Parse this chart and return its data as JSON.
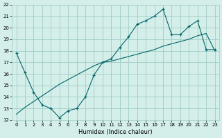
{
  "title": "",
  "xlabel": "Humidex (Indice chaleur)",
  "xlim": [
    -0.5,
    23.5
  ],
  "ylim": [
    12,
    22
  ],
  "xticks": [
    0,
    1,
    2,
    3,
    4,
    5,
    6,
    7,
    8,
    9,
    10,
    11,
    12,
    13,
    14,
    15,
    16,
    17,
    18,
    19,
    20,
    21,
    22,
    23
  ],
  "yticks": [
    12,
    13,
    14,
    15,
    16,
    17,
    18,
    19,
    20,
    21,
    22
  ],
  "background_color": "#d4eeea",
  "grid_color": "#a0ccc6",
  "line_color": "#006666",
  "series1_x": [
    0,
    1,
    2,
    3,
    4,
    5,
    6,
    7,
    8,
    9,
    10,
    11,
    12,
    13,
    14,
    15,
    16,
    17,
    18,
    19,
    20,
    21,
    22,
    23
  ],
  "series1_y": [
    17.8,
    16.1,
    14.4,
    13.3,
    13.0,
    12.2,
    12.8,
    13.0,
    14.0,
    15.9,
    17.0,
    17.3,
    18.3,
    19.2,
    20.3,
    20.6,
    21.0,
    21.6,
    19.4,
    19.4,
    20.1,
    20.6,
    18.1,
    18.1
  ],
  "series2_x": [
    0,
    1,
    2,
    3,
    4,
    5,
    6,
    7,
    8,
    9,
    10,
    11,
    12,
    13,
    14,
    15,
    16,
    17,
    18,
    19,
    20,
    21,
    22,
    23
  ],
  "series2_y": [
    12.5,
    13.1,
    13.6,
    14.1,
    14.6,
    15.1,
    15.5,
    15.9,
    16.3,
    16.7,
    17.0,
    17.1,
    17.3,
    17.5,
    17.7,
    17.9,
    18.1,
    18.4,
    18.6,
    18.8,
    19.0,
    19.3,
    19.5,
    18.0
  ]
}
